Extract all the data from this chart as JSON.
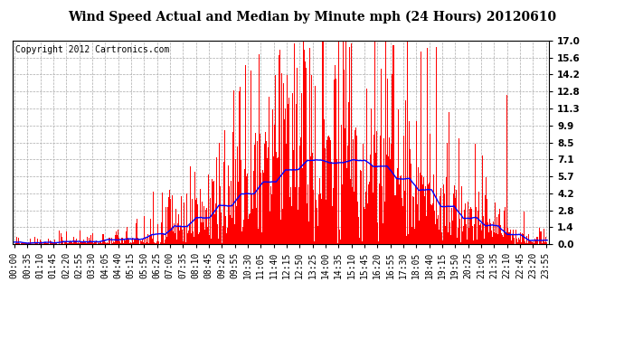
{
  "title": "Wind Speed Actual and Median by Minute mph (24 Hours) 20120610",
  "copyright": "Copyright 2012 Cartronics.com",
  "yticks": [
    0.0,
    1.4,
    2.8,
    4.2,
    5.7,
    7.1,
    8.5,
    9.9,
    11.3,
    12.8,
    14.2,
    15.6,
    17.0
  ],
  "ylim": [
    0.0,
    17.0
  ],
  "bar_color": "#FF0000",
  "line_color": "#0000FF",
  "bg_color": "#FFFFFF",
  "plot_bg_color": "#FFFFFF",
  "grid_color": "#AAAAAA",
  "title_fontsize": 10,
  "copyright_fontsize": 7,
  "tick_fontsize": 7.5,
  "seed": 12345
}
